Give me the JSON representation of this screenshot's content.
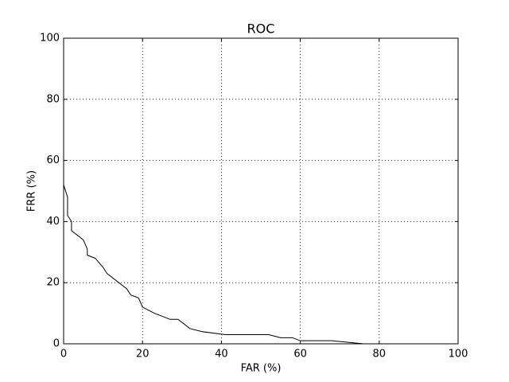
{
  "chart_data": {
    "type": "line",
    "title": "ROC",
    "xlabel": "FAR (%)",
    "ylabel": "FRR (%)",
    "x": [
      0,
      1,
      1,
      2,
      2,
      5,
      6,
      6,
      8,
      10,
      11,
      16,
      17,
      19,
      20,
      23,
      27,
      29,
      32,
      35,
      41,
      52,
      55,
      58,
      60,
      68,
      76,
      100
    ],
    "series": [
      {
        "name": "ROC",
        "color": "#000000",
        "values": [
          52,
          48,
          42,
          40,
          37,
          34,
          31,
          29,
          28,
          25,
          23,
          18,
          16,
          15,
          12,
          10,
          8,
          8,
          5,
          4,
          3,
          3,
          2,
          2,
          1,
          1,
          0,
          0
        ]
      }
    ],
    "xlim": [
      0,
      100
    ],
    "ylim": [
      0,
      100
    ],
    "xticks": [
      0,
      20,
      40,
      60,
      80,
      100
    ],
    "yticks": [
      0,
      20,
      40,
      60,
      80,
      100
    ],
    "grid": true
  }
}
